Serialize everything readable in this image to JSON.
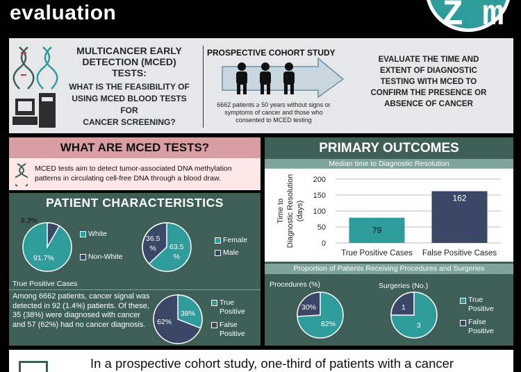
{
  "header": {
    "title": "evaluation",
    "logo_text": "Z m"
  },
  "intro": {
    "question_title": "MULTICANCER EARLY DETECTION (MCED) TESTS:",
    "question_line1": "WHAT IS THE FEASIBILITY OF",
    "question_line2": "USING MCED BLOOD TESTS FOR",
    "question_line3": "CANCER SCREENING?",
    "study_title": "PROSPECTIVE COHORT STUDY",
    "study_desc": "6662 patients ≥ 50 years without signs or symptoms of cancer and those who consented to MCED testing",
    "goal_line1": "EVALUATE THE TIME AND",
    "goal_line2": "EXTENT OF DIAGNOSTIC",
    "goal_line3": "TESTING WITH MCED TO",
    "goal_line4": "CONFIRM THE PRESENCE OR",
    "goal_line5": "ABSENCE OF CANCER"
  },
  "what": {
    "title": "WHAT ARE MCED TESTS?",
    "text": "MCED tests aim to detect tumor-associated DNA methylation patterns in circulating cell-free DNA through a blood draw."
  },
  "patients": {
    "title": "PATIENT CHARACTERISTICS",
    "race": {
      "legend": [
        "White",
        "Non-White"
      ],
      "slices": [
        {
          "label": "91.7%",
          "value": 91.7
        },
        {
          "label": "8.3%",
          "value": 8.3
        }
      ]
    },
    "sex": {
      "legend": [
        "Female",
        "Male"
      ],
      "slices": [
        {
          "label_a": "63.5",
          "label_b": "%",
          "value": 63.5
        },
        {
          "label_a": "36.5",
          "label_b": "%",
          "value": 36.5
        }
      ]
    },
    "tp_label": "True Positive Cases",
    "tp_text": "Among 6662 patients, cancer signal was detected in 92 (1.4%) patients. Of these, 35 (38%) were diagnosed with cancer and 57 (62%) had no cancer diagnosis.",
    "tp": {
      "legend": [
        "True Positive",
        "False Positive"
      ],
      "slices": [
        {
          "label": "38%",
          "value": 38
        },
        {
          "label": "62%",
          "value": 62
        }
      ]
    }
  },
  "outcomes": {
    "title": "PRIMARY OUTCOMES",
    "sub1": "Median time to Diagnostic Resolution",
    "sub2": "Proportion of Patients Receiving Procedures and Surgeries",
    "procedures_label": "Procedures (%)",
    "surgeries_label": "Surgeries (No.)",
    "legend": [
      "True Positive",
      "False Positive"
    ],
    "procedures": [
      {
        "label": "82%",
        "value": 82
      },
      {
        "label": "30%",
        "value": 30
      }
    ],
    "surgeries": [
      {
        "label": "3",
        "value": 3
      },
      {
        "label": "1",
        "value": 1
      }
    ]
  },
  "chart_data": {
    "type": "bar",
    "title": "Median time to Diagnostic Resolution",
    "categories": [
      "True Positive Cases",
      "False Positive Cases"
    ],
    "values": [
      79,
      162
    ],
    "ylabel": "Time to Diagnostic Resolution (days)",
    "yticks": [
      "0",
      "50",
      "100",
      "150",
      "200"
    ],
    "ylim": [
      0,
      200
    ],
    "grid": true,
    "colors": [
      "#2e9c9a",
      "#3a4766"
    ]
  },
  "bottom": {
    "text": "In a prospective cohort study, one-third of patients with a cancer"
  },
  "colors": {
    "teal": "#2e9c9a",
    "dark_green": "#3d5f55",
    "navy": "#3a4766",
    "pink": "#d89ea3"
  }
}
